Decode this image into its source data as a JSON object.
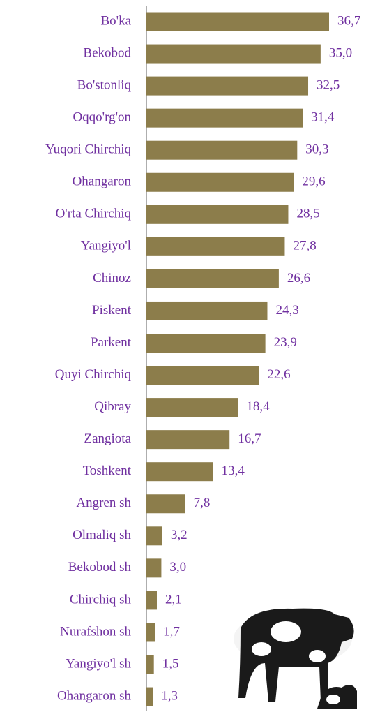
{
  "chart_data": {
    "type": "bar",
    "orientation": "horizontal",
    "categories": [
      "Bo'ka",
      "Bekobod",
      "Bo'stonliq",
      "Oqqo'rg'on",
      "Yuqori Chirchiq",
      "Ohangaron",
      "O'rta Chirchiq",
      "Yangiyo'l",
      "Chinoz",
      "Piskent",
      "Parkent",
      "Quyi Chirchiq",
      "Qibray",
      "Zangiota",
      "Toshkent",
      "Angren sh",
      "Olmaliq sh",
      "Bekobod sh",
      "Chirchiq sh",
      "Nurafshon sh",
      "Yangiyo'l sh",
      "Ohangaron sh"
    ],
    "values": [
      36.7,
      35.0,
      32.5,
      31.4,
      30.3,
      29.6,
      28.5,
      27.8,
      26.6,
      24.3,
      23.9,
      22.6,
      18.4,
      16.7,
      13.4,
      7.8,
      3.2,
      3.0,
      2.1,
      1.7,
      1.5,
      1.3
    ],
    "value_labels": [
      "36,7",
      "35,0",
      "32,5",
      "31,4",
      "30,3",
      "29,6",
      "28,5",
      "27,8",
      "26,6",
      "24,3",
      "23,9",
      "22,6",
      "18,4",
      "16,7",
      "13,4",
      "7,8",
      "3,2",
      "3,0",
      "2,1",
      "1,7",
      "1,5",
      "1,3"
    ],
    "color": "#8c7d4b"
  }
}
